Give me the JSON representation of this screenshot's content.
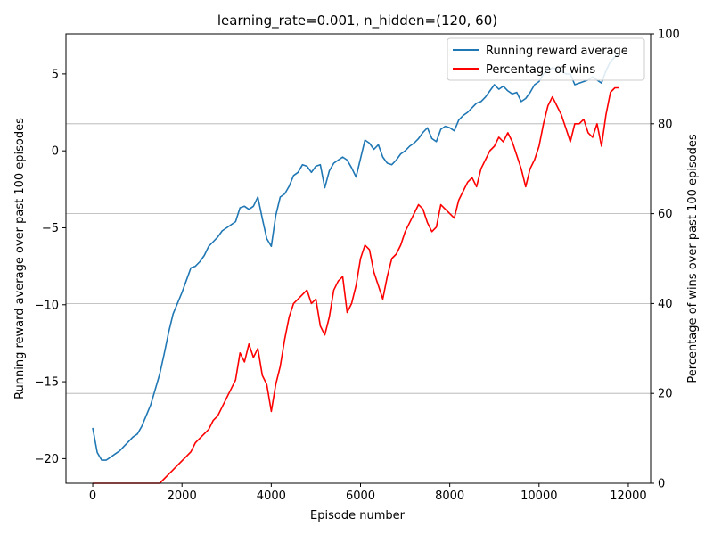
{
  "chart_data": {
    "type": "line",
    "title": "learning_rate=0.001, n_hidden=(120, 60)",
    "xlabel": "Episode number",
    "ylabel_left": "Running reward average over past 100 episodes",
    "ylabel_right": "Percentage of wins over past 100 episodes",
    "xlim": [
      -600,
      12500
    ],
    "ylim_left": [
      -21.6,
      7.6
    ],
    "ylim_right": [
      0,
      100
    ],
    "x_ticks": [
      0,
      2000,
      4000,
      6000,
      8000,
      10000,
      12000
    ],
    "x_tick_labels": [
      "0",
      "2000",
      "4000",
      "6000",
      "8000",
      "10000",
      "12000"
    ],
    "y_left_ticks": [
      -20,
      -15,
      -10,
      -5,
      0,
      5
    ],
    "y_left_tick_labels": [
      "−20",
      "−15",
      "−10",
      "−5",
      "0",
      "5"
    ],
    "y_right_ticks": [
      0,
      20,
      40,
      60,
      80,
      100
    ],
    "y_right_tick_labels": [
      "0",
      "20",
      "40",
      "60",
      "80",
      "100"
    ],
    "grid": "horizontal lines at right-axis ticks",
    "legend_position": "top-right",
    "series": [
      {
        "name": "Running reward average",
        "axis": "left",
        "color": "#1f77b4",
        "x": [
          0,
          100,
          200,
          300,
          400,
          500,
          600,
          700,
          800,
          900,
          1000,
          1100,
          1200,
          1300,
          1400,
          1500,
          1600,
          1700,
          1800,
          1900,
          2000,
          2100,
          2200,
          2300,
          2400,
          2500,
          2600,
          2700,
          2800,
          2900,
          3000,
          3100,
          3200,
          3300,
          3400,
          3500,
          3600,
          3700,
          3800,
          3900,
          4000,
          4100,
          4200,
          4300,
          4400,
          4500,
          4600,
          4700,
          4800,
          4900,
          5000,
          5100,
          5200,
          5300,
          5400,
          5500,
          5600,
          5700,
          5800,
          5900,
          6000,
          6100,
          6200,
          6300,
          6400,
          6500,
          6600,
          6700,
          6800,
          6900,
          7000,
          7100,
          7200,
          7300,
          7400,
          7500,
          7600,
          7700,
          7800,
          7900,
          8000,
          8100,
          8200,
          8300,
          8400,
          8500,
          8600,
          8700,
          8800,
          8900,
          9000,
          9100,
          9200,
          9300,
          9400,
          9500,
          9600,
          9700,
          9800,
          9900,
          10000,
          10100,
          10200,
          10300,
          10400,
          10500,
          10600,
          10700,
          10800,
          10900,
          11000,
          11100,
          11200,
          11300,
          11400,
          11500,
          11600,
          11700,
          11800
        ],
        "values": [
          -18.0,
          -19.6,
          -20.1,
          -20.1,
          -19.9,
          -19.7,
          -19.5,
          -19.2,
          -18.9,
          -18.6,
          -18.4,
          -17.9,
          -17.2,
          -16.5,
          -15.5,
          -14.5,
          -13.2,
          -11.8,
          -10.6,
          -9.9,
          -9.2,
          -8.4,
          -7.6,
          -7.5,
          -7.2,
          -6.8,
          -6.2,
          -5.9,
          -5.6,
          -5.2,
          -5.0,
          -4.8,
          -4.6,
          -3.7,
          -3.6,
          -3.8,
          -3.6,
          -3.0,
          -4.4,
          -5.7,
          -6.2,
          -4.2,
          -3.0,
          -2.8,
          -2.3,
          -1.6,
          -1.4,
          -0.9,
          -1.0,
          -1.4,
          -1.0,
          -0.9,
          -2.4,
          -1.3,
          -0.8,
          -0.6,
          -0.4,
          -0.6,
          -1.1,
          -1.7,
          -0.5,
          0.7,
          0.5,
          0.1,
          0.4,
          -0.4,
          -0.8,
          -0.9,
          -0.6,
          -0.2,
          0.0,
          0.3,
          0.5,
          0.8,
          1.2,
          1.5,
          0.8,
          0.6,
          1.4,
          1.6,
          1.5,
          1.3,
          2.0,
          2.3,
          2.5,
          2.8,
          3.1,
          3.2,
          3.5,
          3.9,
          4.3,
          4.0,
          4.2,
          3.9,
          3.7,
          3.8,
          3.2,
          3.4,
          3.8,
          4.3,
          4.5,
          5.0,
          5.2,
          5.4,
          5.3,
          5.2,
          5.0,
          5.0,
          4.3,
          4.4,
          4.5,
          4.6,
          4.8,
          4.6,
          4.4,
          5.2,
          5.8,
          6.1,
          6.3
        ]
      },
      {
        "name": "Percentage of wins",
        "axis": "right",
        "color": "#ff0000",
        "x": [
          0,
          100,
          200,
          300,
          400,
          500,
          600,
          700,
          800,
          900,
          1000,
          1100,
          1200,
          1300,
          1400,
          1500,
          1600,
          1700,
          1800,
          1900,
          2000,
          2100,
          2200,
          2300,
          2400,
          2500,
          2600,
          2700,
          2800,
          2900,
          3000,
          3100,
          3200,
          3300,
          3400,
          3500,
          3600,
          3700,
          3800,
          3900,
          4000,
          4100,
          4200,
          4300,
          4400,
          4500,
          4600,
          4700,
          4800,
          4900,
          5000,
          5100,
          5200,
          5300,
          5400,
          5500,
          5600,
          5700,
          5800,
          5900,
          6000,
          6100,
          6200,
          6300,
          6400,
          6500,
          6600,
          6700,
          6800,
          6900,
          7000,
          7100,
          7200,
          7300,
          7400,
          7500,
          7600,
          7700,
          7800,
          7900,
          8000,
          8100,
          8200,
          8300,
          8400,
          8500,
          8600,
          8700,
          8800,
          8900,
          9000,
          9100,
          9200,
          9300,
          9400,
          9500,
          9600,
          9700,
          9800,
          9900,
          10000,
          10100,
          10200,
          10300,
          10400,
          10500,
          10600,
          10700,
          10800,
          10900,
          11000,
          11100,
          11200,
          11300,
          11400,
          11500,
          11600,
          11700,
          11800
        ],
        "values": [
          0,
          0,
          0,
          0,
          0,
          0,
          0,
          0,
          0,
          0,
          0,
          0,
          0,
          0,
          0,
          0,
          1,
          2,
          3,
          4,
          5,
          6,
          7,
          9,
          10,
          11,
          12,
          14,
          15,
          17,
          19,
          21,
          23,
          29,
          27,
          31,
          28,
          30,
          24,
          22,
          16,
          22,
          26,
          32,
          37,
          40,
          41,
          42,
          43,
          40,
          41,
          35,
          33,
          37,
          43,
          45,
          46,
          38,
          40,
          44,
          50,
          53,
          52,
          47,
          44,
          41,
          46,
          50,
          51,
          53,
          56,
          58,
          60,
          62,
          61,
          58,
          56,
          57,
          62,
          61,
          60,
          59,
          63,
          65,
          67,
          68,
          66,
          70,
          72,
          74,
          75,
          77,
          76,
          78,
          76,
          73,
          70,
          66,
          70,
          72,
          75,
          80,
          84,
          86,
          84,
          82,
          79,
          76,
          80,
          80,
          81,
          78,
          77,
          80,
          75,
          82,
          87,
          88,
          88
        ]
      }
    ]
  }
}
